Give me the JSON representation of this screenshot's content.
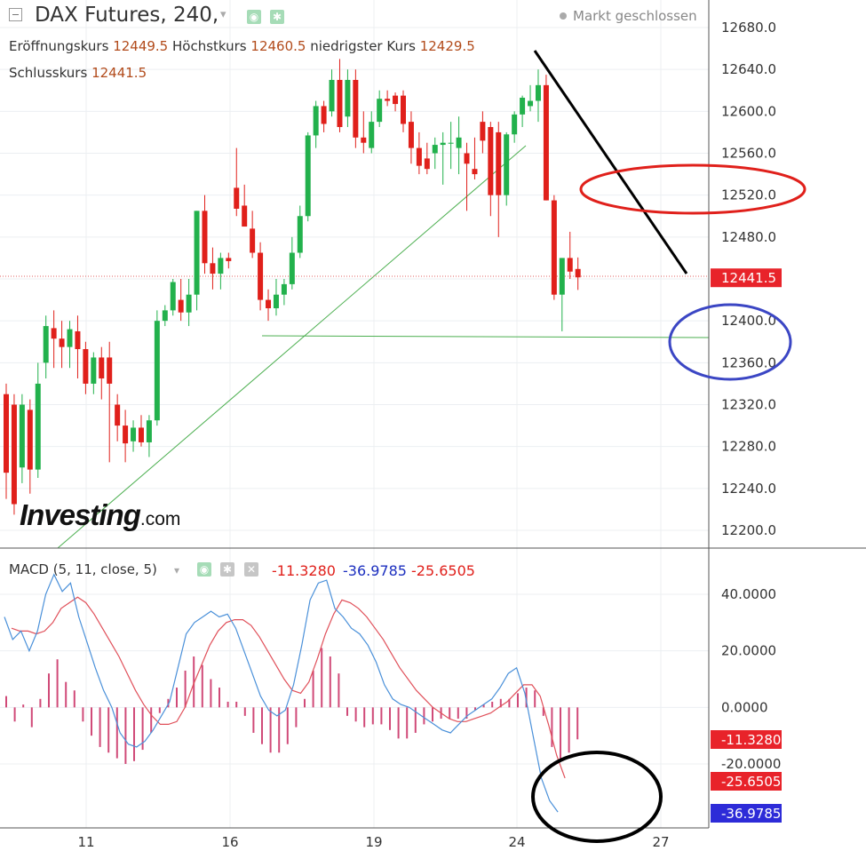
{
  "header": {
    "symbol": "DAX Futures, 240,",
    "market_status": "Markt geschlossen",
    "ohlc": [
      {
        "label": "Eröffnungskurs",
        "value": "12449.5"
      },
      {
        "label": "Höchstkurs",
        "value": "12460.5"
      },
      {
        "label": "niedrigster Kurs",
        "value": "12429.5"
      },
      {
        "label": "Schlusskurs",
        "value": "12441.5"
      }
    ]
  },
  "watermark": {
    "brand": "Investing",
    "suffix": ".com"
  },
  "macd_header": {
    "label": "MACD (5, 11, close, 5)",
    "values": [
      "-11.3280",
      "-36.9785",
      "-25.6505"
    ]
  },
  "colors": {
    "up": "#22b14c",
    "down": "#e0201b",
    "macd_line": "#4a90d9",
    "signal_line": "#e0505a",
    "histogram": "#d04a78",
    "trendline": "#4caf50",
    "last_price_bg": "#e8232a",
    "ellipse_red": "#e0201b",
    "ellipse_blue": "#3b46c4",
    "ellipse_black": "#000000"
  },
  "chart_data": [
    {
      "type": "candlestick",
      "title": "DAX Futures, 240",
      "ylim": [
        12180,
        12700
      ],
      "y_ticks": [
        "12680.0",
        "12640.0",
        "12600.0",
        "12560.0",
        "12520.0",
        "12480.0",
        "12440.0",
        "12400.0",
        "12360.0",
        "12320.0",
        "12280.0",
        "12240.0",
        "12200.0"
      ],
      "x_ticks": [
        "11",
        "16",
        "19",
        "24",
        "27"
      ],
      "last_price": "12441.5",
      "candles": [
        {
          "o": 12330,
          "h": 12340,
          "l": 12230,
          "c": 12255
        },
        {
          "o": 12320,
          "h": 12330,
          "l": 12215,
          "c": 12225
        },
        {
          "o": 12260,
          "h": 12330,
          "l": 12245,
          "c": 12320
        },
        {
          "o": 12315,
          "h": 12325,
          "l": 12235,
          "c": 12258
        },
        {
          "o": 12258,
          "h": 12360,
          "l": 12250,
          "c": 12340
        },
        {
          "o": 12360,
          "h": 12405,
          "l": 12345,
          "c": 12395
        },
        {
          "o": 12393,
          "h": 12410,
          "l": 12355,
          "c": 12383
        },
        {
          "o": 12383,
          "h": 12400,
          "l": 12355,
          "c": 12375
        },
        {
          "o": 12375,
          "h": 12400,
          "l": 12355,
          "c": 12392
        },
        {
          "o": 12390,
          "h": 12405,
          "l": 12345,
          "c": 12373
        },
        {
          "o": 12373,
          "h": 12380,
          "l": 12330,
          "c": 12340
        },
        {
          "o": 12340,
          "h": 12370,
          "l": 12330,
          "c": 12365
        },
        {
          "o": 12365,
          "h": 12375,
          "l": 12325,
          "c": 12345
        },
        {
          "o": 12365,
          "h": 12380,
          "l": 12265,
          "c": 12340
        },
        {
          "o": 12320,
          "h": 12330,
          "l": 12285,
          "c": 12300
        },
        {
          "o": 12300,
          "h": 12315,
          "l": 12265,
          "c": 12283
        },
        {
          "o": 12285,
          "h": 12305,
          "l": 12275,
          "c": 12298
        },
        {
          "o": 12298,
          "h": 12310,
          "l": 12280,
          "c": 12284
        },
        {
          "o": 12284,
          "h": 12310,
          "l": 12270,
          "c": 12305
        },
        {
          "o": 12305,
          "h": 12410,
          "l": 12300,
          "c": 12400
        },
        {
          "o": 12400,
          "h": 12415,
          "l": 12395,
          "c": 12410
        },
        {
          "o": 12410,
          "h": 12440,
          "l": 12405,
          "c": 12437
        },
        {
          "o": 12420,
          "h": 12440,
          "l": 12400,
          "c": 12408
        },
        {
          "o": 12408,
          "h": 12440,
          "l": 12395,
          "c": 12425
        },
        {
          "o": 12425,
          "h": 12505,
          "l": 12410,
          "c": 12505
        },
        {
          "o": 12505,
          "h": 12520,
          "l": 12445,
          "c": 12455
        },
        {
          "o": 12455,
          "h": 12470,
          "l": 12430,
          "c": 12445
        },
        {
          "o": 12445,
          "h": 12465,
          "l": 12430,
          "c": 12460
        },
        {
          "o": 12460,
          "h": 12465,
          "l": 12450,
          "c": 12457
        },
        {
          "o": 12527,
          "h": 12565,
          "l": 12500,
          "c": 12507
        },
        {
          "o": 12510,
          "h": 12530,
          "l": 12490,
          "c": 12490
        },
        {
          "o": 12488,
          "h": 12505,
          "l": 12460,
          "c": 12465
        },
        {
          "o": 12465,
          "h": 12475,
          "l": 12410,
          "c": 12420
        },
        {
          "o": 12420,
          "h": 12430,
          "l": 12400,
          "c": 12412
        },
        {
          "o": 12412,
          "h": 12440,
          "l": 12405,
          "c": 12425
        },
        {
          "o": 12425,
          "h": 12440,
          "l": 12415,
          "c": 12435
        },
        {
          "o": 12435,
          "h": 12480,
          "l": 12430,
          "c": 12465
        },
        {
          "o": 12465,
          "h": 12510,
          "l": 12460,
          "c": 12500
        },
        {
          "o": 12500,
          "h": 12580,
          "l": 12495,
          "c": 12577
        },
        {
          "o": 12577,
          "h": 12610,
          "l": 12565,
          "c": 12605
        },
        {
          "o": 12605,
          "h": 12610,
          "l": 12580,
          "c": 12588
        },
        {
          "o": 12600,
          "h": 12640,
          "l": 12595,
          "c": 12630
        },
        {
          "o": 12630,
          "h": 12650,
          "l": 12580,
          "c": 12585
        },
        {
          "o": 12595,
          "h": 12640,
          "l": 12585,
          "c": 12630
        },
        {
          "o": 12630,
          "h": 12640,
          "l": 12565,
          "c": 12575
        },
        {
          "o": 12575,
          "h": 12600,
          "l": 12560,
          "c": 12570
        },
        {
          "o": 12565,
          "h": 12600,
          "l": 12560,
          "c": 12590
        },
        {
          "o": 12590,
          "h": 12620,
          "l": 12585,
          "c": 12612
        },
        {
          "o": 12612,
          "h": 12620,
          "l": 12605,
          "c": 12610
        },
        {
          "o": 12615,
          "h": 12618,
          "l": 12600,
          "c": 12607
        },
        {
          "o": 12615,
          "h": 12620,
          "l": 12580,
          "c": 12588
        },
        {
          "o": 12590,
          "h": 12600,
          "l": 12550,
          "c": 12565
        },
        {
          "o": 12565,
          "h": 12580,
          "l": 12540,
          "c": 12548
        },
        {
          "o": 12555,
          "h": 12570,
          "l": 12540,
          "c": 12545
        },
        {
          "o": 12560,
          "h": 12575,
          "l": 12545,
          "c": 12568
        },
        {
          "o": 12568,
          "h": 12580,
          "l": 12530,
          "c": 12570
        },
        {
          "o": 12570,
          "h": 12590,
          "l": 12545,
          "c": 12570
        },
        {
          "o": 12565,
          "h": 12595,
          "l": 12540,
          "c": 12575
        },
        {
          "o": 12560,
          "h": 12570,
          "l": 12505,
          "c": 12550
        },
        {
          "o": 12545,
          "h": 12575,
          "l": 12535,
          "c": 12540
        },
        {
          "o": 12590,
          "h": 12600,
          "l": 12560,
          "c": 12572
        },
        {
          "o": 12585,
          "h": 12590,
          "l": 12500,
          "c": 12520
        },
        {
          "o": 12580,
          "h": 12590,
          "l": 12480,
          "c": 12520
        },
        {
          "o": 12520,
          "h": 12580,
          "l": 12510,
          "c": 12578
        },
        {
          "o": 12578,
          "h": 12600,
          "l": 12570,
          "c": 12597
        },
        {
          "o": 12597,
          "h": 12615,
          "l": 12585,
          "c": 12613
        },
        {
          "o": 12605,
          "h": 12625,
          "l": 12600,
          "c": 12610
        },
        {
          "o": 12610,
          "h": 12640,
          "l": 12590,
          "c": 12625
        },
        {
          "o": 12625,
          "h": 12635,
          "l": 12515,
          "c": 12515
        },
        {
          "o": 12515,
          "h": 12520,
          "l": 12420,
          "c": 12425
        },
        {
          "o": 12425,
          "h": 12460,
          "l": 12390,
          "c": 12460
        },
        {
          "o": 12460,
          "h": 12485,
          "l": 12440,
          "c": 12447
        },
        {
          "o": 12449.5,
          "h": 12460.5,
          "l": 12429.5,
          "c": 12441.5
        }
      ]
    },
    {
      "type": "line",
      "title": "MACD (5, 11, close, 5)",
      "ylim": [
        -42,
        50
      ],
      "y_ticks": [
        "40.0000",
        "20.0000",
        "0.0000",
        "-20.0000"
      ],
      "last_values": {
        "histogram": "-11.3280",
        "macd": "-36.9785",
        "signal": "-25.6505"
      },
      "series": [
        {
          "values": [
            32,
            24,
            27,
            20,
            27,
            40,
            47,
            41,
            44,
            32,
            23,
            14,
            6,
            0,
            -9,
            -13,
            -14,
            -12,
            -8,
            -3,
            2,
            14,
            26,
            30,
            32,
            34,
            32,
            33,
            28,
            20,
            12,
            4,
            -1,
            -3,
            -1,
            8,
            22,
            38,
            44,
            45,
            35,
            32,
            28,
            26,
            22,
            16,
            8,
            3,
            1,
            0,
            -2,
            -4,
            -6,
            -8,
            -9,
            -6,
            -3,
            -1,
            1,
            3,
            7,
            12,
            14,
            5,
            -10,
            -25,
            -33,
            -37
          ]
        },
        {
          "values": [
            28,
            27,
            27,
            26,
            27,
            30,
            35,
            37,
            39,
            37,
            33,
            28,
            23,
            18,
            12,
            6,
            1,
            -3,
            -6,
            -6,
            -5,
            0,
            8,
            15,
            22,
            27,
            30,
            31,
            31,
            29,
            25,
            20,
            15,
            10,
            6,
            5,
            9,
            17,
            26,
            33,
            38,
            37,
            35,
            32,
            28,
            24,
            19,
            14,
            10,
            6,
            3,
            0,
            -2,
            -4,
            -5,
            -5,
            -4,
            -3,
            -2,
            0,
            2,
            5,
            8,
            8,
            4,
            -6,
            -17,
            -25
          ]
        },
        {
          "values": [
            4,
            -5,
            1,
            -7,
            3,
            12,
            17,
            9,
            6,
            -5,
            -10,
            -14,
            -16,
            -18,
            -20,
            -19,
            -15,
            -9,
            -2,
            3,
            7,
            13,
            18,
            15,
            10,
            7,
            2,
            2,
            -3,
            -9,
            -13,
            -16,
            -16,
            -13,
            -7,
            3,
            13,
            21,
            18,
            12,
            -3,
            -5,
            -7,
            -6,
            -6,
            -8,
            -11,
            -11,
            -9,
            -6,
            -5,
            -4,
            -4,
            -4,
            -4,
            -1,
            1,
            2,
            3,
            3,
            5,
            7,
            6,
            -3,
            -14,
            -19,
            -16,
            -11.3
          ]
        }
      ]
    }
  ]
}
